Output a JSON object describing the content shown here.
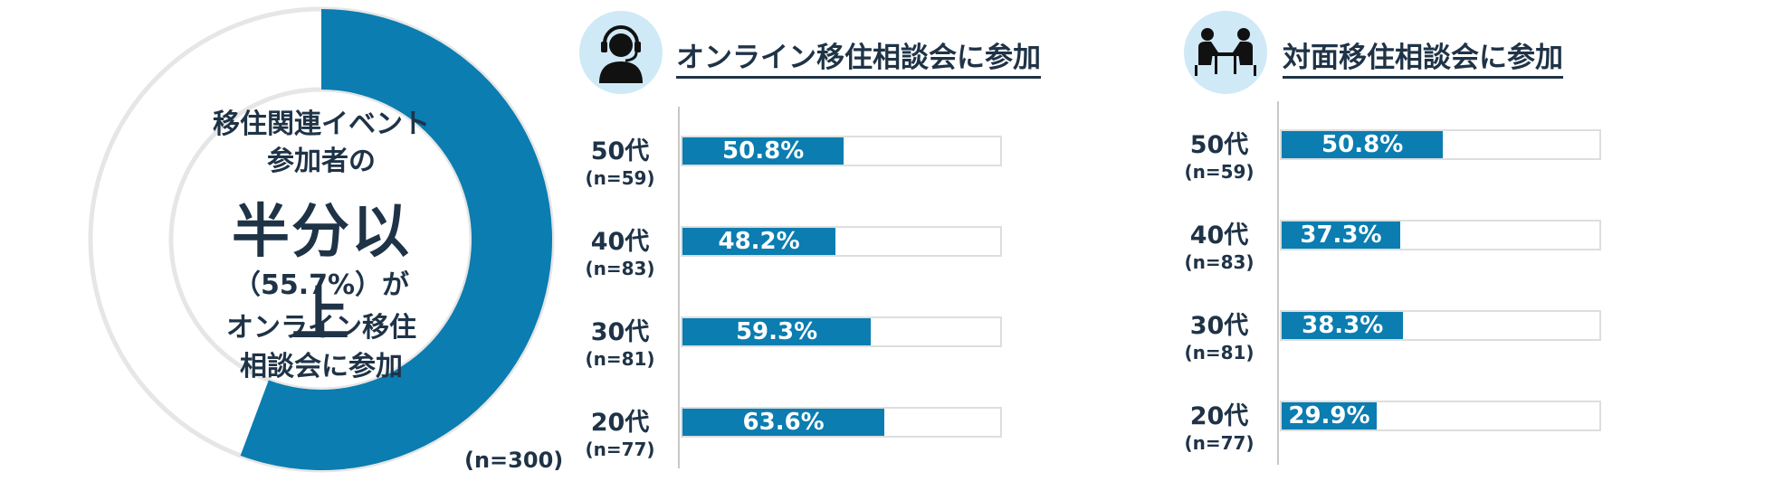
{
  "donut": {
    "line1": "移住関連イベント",
    "line2": "参加者の",
    "big": "半分以上",
    "line3": "（55.7%）が",
    "line4": "オンライン移住",
    "line5": "相談会に参加",
    "n_label": "(n=300)",
    "share": 0.557
  },
  "colors": {
    "accent": "#0b7db0",
    "ring": "#e6e6e6",
    "icon_bg": "#cfe9f7",
    "text": "#1f3347"
  },
  "chart_data": [
    {
      "type": "bar",
      "title": "オンライン移住相談会に参加",
      "icon": "headset-person-icon",
      "categories": [
        "50代",
        "40代",
        "30代",
        "20代"
      ],
      "n": [
        "(n=59)",
        "(n=83)",
        "(n=81)",
        "(n=77)"
      ],
      "values": [
        50.8,
        48.2,
        59.3,
        63.6
      ],
      "labels": [
        "50.8%",
        "48.2%",
        "59.3%",
        "63.6%"
      ],
      "xlim": [
        0,
        100
      ]
    },
    {
      "type": "bar",
      "title": "対面移住相談会に参加",
      "icon": "face-to-face-meeting-icon",
      "categories": [
        "50代",
        "40代",
        "30代",
        "20代"
      ],
      "n": [
        "(n=59)",
        "(n=83)",
        "(n=81)",
        "(n=77)"
      ],
      "values": [
        50.8,
        37.3,
        38.3,
        29.9
      ],
      "labels": [
        "50.8%",
        "37.3%",
        "38.3%",
        "29.9%"
      ],
      "xlim": [
        0,
        100
      ]
    }
  ]
}
